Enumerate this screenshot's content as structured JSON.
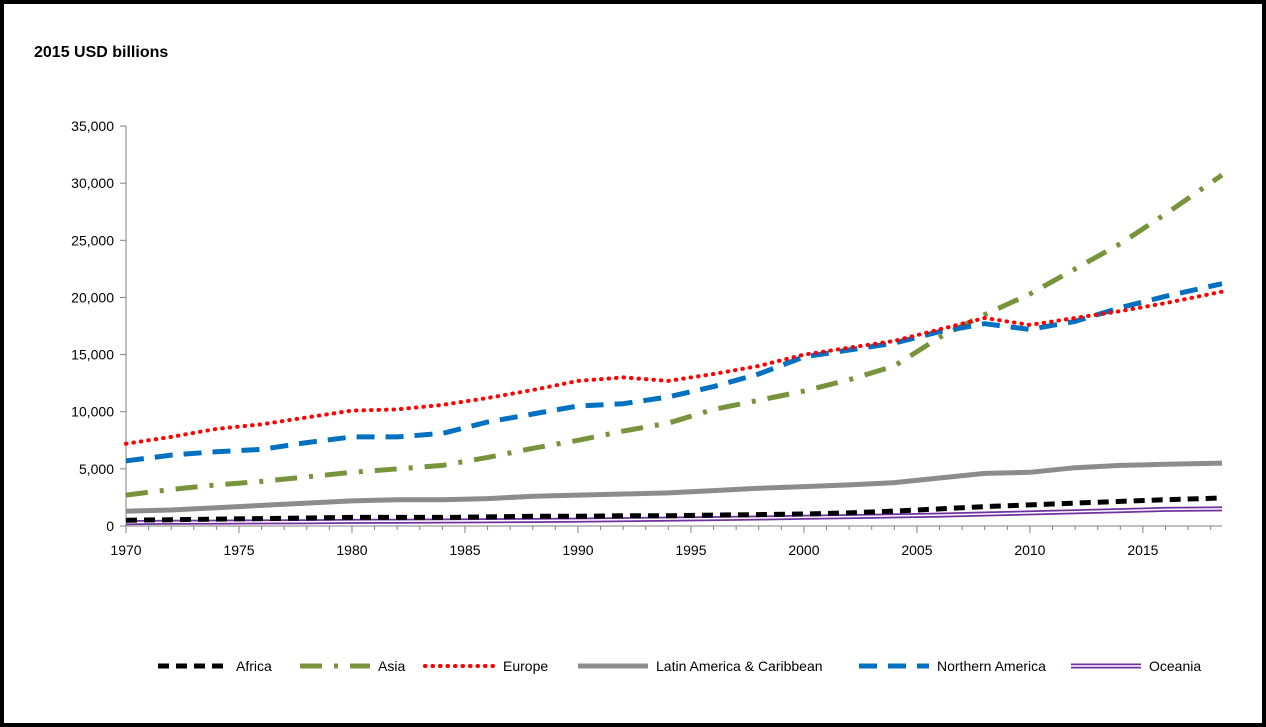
{
  "chart_data": {
    "type": "line",
    "ylabel": "2015 USD billions",
    "xlabel": "",
    "xlim": [
      1970,
      2018.5
    ],
    "ylim": [
      0,
      35000
    ],
    "y_ticks": [
      "0",
      "5,000",
      "10,000",
      "15,000",
      "20,000",
      "25,000",
      "30,000",
      "35,000"
    ],
    "x_ticks": [
      "1970",
      "1975",
      "1980",
      "1985",
      "1990",
      "1995",
      "2000",
      "2005",
      "2010",
      "2015"
    ],
    "grid": false,
    "legend_position": "bottom",
    "x": [
      1970,
      1972,
      1974,
      1976,
      1978,
      1980,
      1982,
      1984,
      1986,
      1988,
      1990,
      1992,
      1994,
      1996,
      1998,
      2000,
      2002,
      2004,
      2006,
      2008,
      2010,
      2012,
      2014,
      2016,
      2018.5
    ],
    "series": [
      {
        "name": "Africa",
        "color": "#000000",
        "style": "dashed",
        "values": [
          500,
          550,
          600,
          650,
          700,
          750,
          750,
          750,
          800,
          850,
          850,
          900,
          900,
          950,
          1000,
          1050,
          1150,
          1300,
          1500,
          1700,
          1850,
          2000,
          2150,
          2300,
          2450
        ]
      },
      {
        "name": "Asia",
        "color": "#77933C",
        "style": "dash-dot",
        "values": [
          2700,
          3200,
          3600,
          3900,
          4300,
          4700,
          5000,
          5300,
          6000,
          6800,
          7500,
          8300,
          9000,
          10200,
          11000,
          11800,
          12800,
          14000,
          16500,
          18500,
          20300,
          22500,
          24700,
          27300,
          30700
        ]
      },
      {
        "name": "Europe",
        "color": "#FF0000",
        "style": "dotted",
        "values": [
          7200,
          7800,
          8500,
          8900,
          9500,
          10100,
          10200,
          10600,
          11200,
          11900,
          12700,
          13000,
          12700,
          13300,
          14000,
          15000,
          15600,
          16200,
          17200,
          18200,
          17600,
          18200,
          18800,
          19500,
          20500
        ]
      },
      {
        "name": "Latin America & Caribbean",
        "color": "#8C8C8C",
        "style": "solid",
        "values": [
          1300,
          1400,
          1600,
          1800,
          2000,
          2200,
          2300,
          2300,
          2400,
          2600,
          2700,
          2800,
          2900,
          3100,
          3300,
          3450,
          3600,
          3800,
          4200,
          4600,
          4700,
          5100,
          5300,
          5400,
          5500
        ]
      },
      {
        "name": "Northern America",
        "color": "#0070C0",
        "style": "dashed",
        "values": [
          5700,
          6200,
          6500,
          6700,
          7300,
          7800,
          7800,
          8100,
          9100,
          9800,
          10500,
          10700,
          11300,
          12200,
          13300,
          14800,
          15400,
          16000,
          17000,
          17700,
          17200,
          17900,
          19100,
          20100,
          21200
        ]
      },
      {
        "name": "Oceania",
        "color": "#7030A0",
        "style": "double",
        "values": [
          300,
          320,
          340,
          360,
          380,
          400,
          420,
          440,
          460,
          480,
          520,
          560,
          600,
          650,
          700,
          760,
          820,
          880,
          950,
          1050,
          1150,
          1250,
          1350,
          1450,
          1500
        ]
      }
    ]
  }
}
